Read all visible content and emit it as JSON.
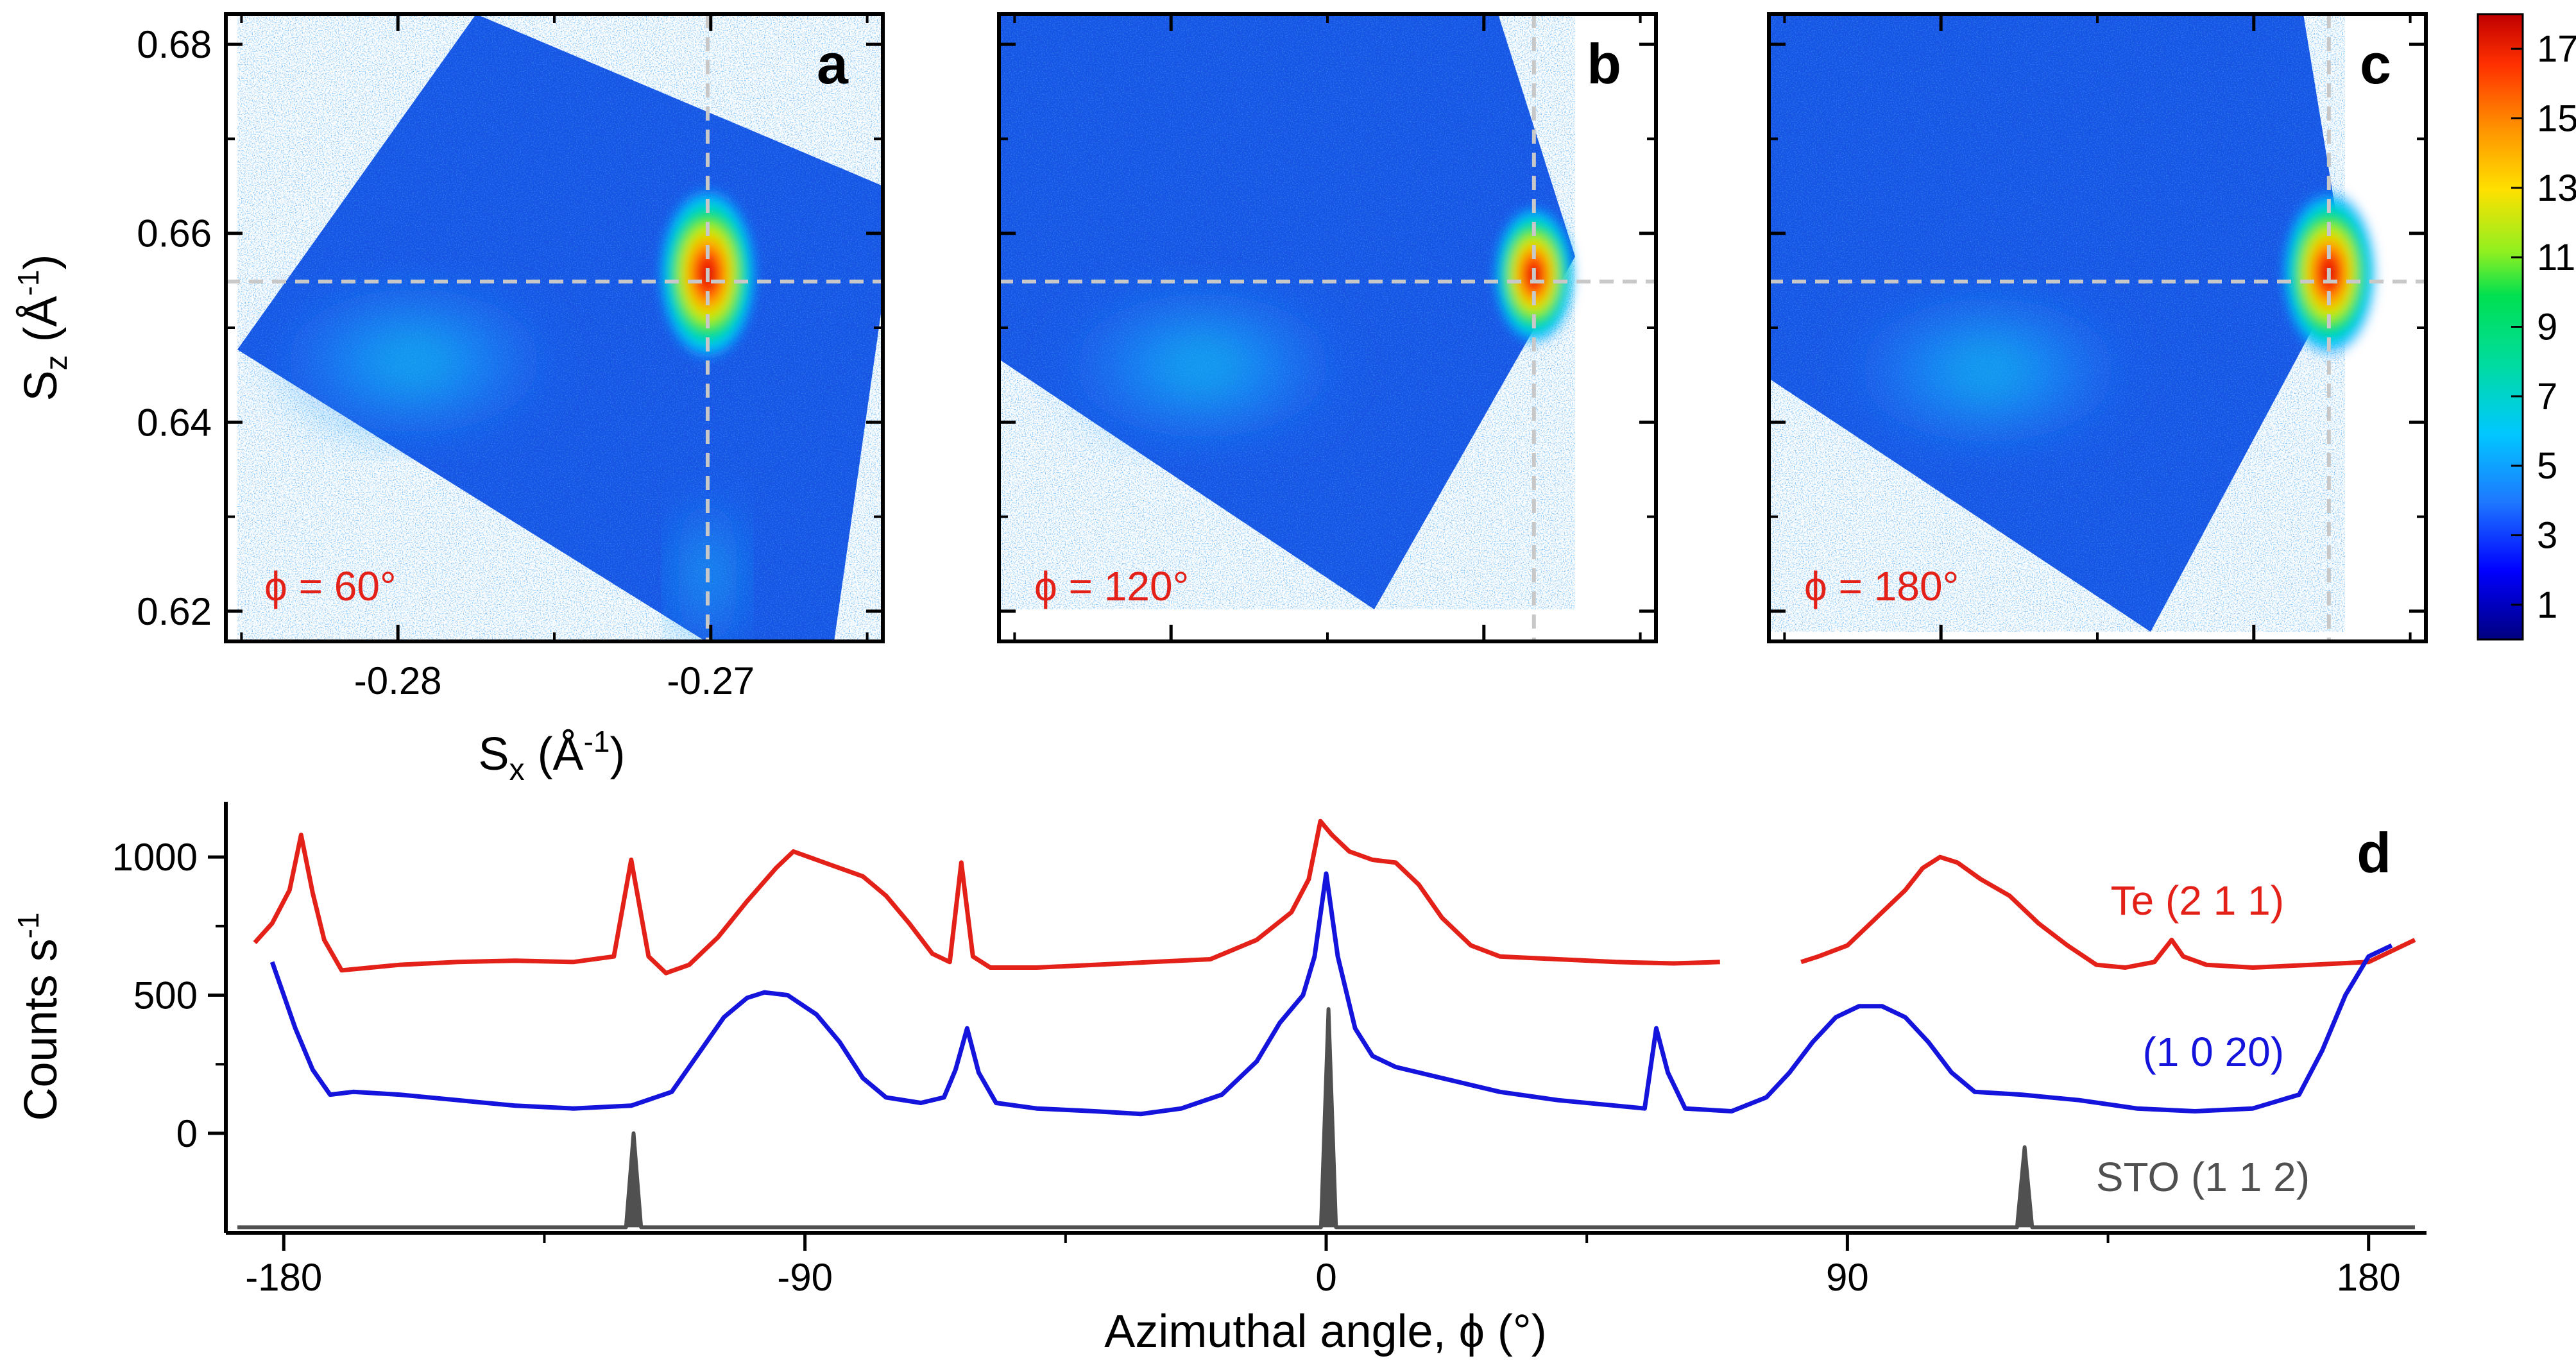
{
  "colors": {
    "red": "#e32119",
    "blue": "#1414dc",
    "gray": "#505050",
    "guide": "#c8c8c8"
  },
  "chart_data": [
    {
      "type": "heatmap",
      "panel": "a",
      "annotation": "ϕ = 60°",
      "xlabel": "S",
      "xlabel_sub": "x",
      "xlabel_unit": " (Å",
      "xlabel_sup": "-1",
      "xlabel_close": ")",
      "ylabel": "S",
      "ylabel_sub": "z",
      "ylabel_unit": " (Å",
      "ylabel_sup": "-1",
      "ylabel_close": ")",
      "xlim": [
        -0.2855,
        -0.2645
      ],
      "ylim": [
        0.6168,
        0.6832
      ],
      "xticks": [
        -0.28,
        -0.27
      ],
      "xtick_labels": [
        "-0.28",
        "-0.27"
      ],
      "yticks": [
        0.62,
        0.64,
        0.66,
        0.68
      ],
      "ytick_labels": [
        "0.62",
        "0.64",
        "0.66",
        "0.68"
      ],
      "guide_x": -0.2701,
      "guide_y": 0.6549,
      "peak": {
        "x": -0.2701,
        "y": 0.6557,
        "max": 17
      },
      "diffuse": {
        "x": -0.2795,
        "y": 0.6465,
        "level": 6
      }
    },
    {
      "type": "heatmap",
      "panel": "b",
      "annotation": "ϕ = 120°",
      "xlim": [
        -0.2855,
        -0.2645
      ],
      "ylim": [
        0.6168,
        0.6832
      ],
      "guide_x": -0.2684,
      "guide_y": 0.6549,
      "peak": {
        "x": -0.2684,
        "y": 0.6556,
        "max": 13
      },
      "diffuse": {
        "x": -0.279,
        "y": 0.646,
        "level": 6
      }
    },
    {
      "type": "heatmap",
      "panel": "c",
      "annotation": "ϕ = 180°",
      "xlim": [
        -0.2855,
        -0.2645
      ],
      "ylim": [
        0.6168,
        0.6832
      ],
      "guide_x": -0.2676,
      "guide_y": 0.6549,
      "peak": {
        "x": -0.2676,
        "y": 0.6558,
        "max": 16
      },
      "diffuse": {
        "x": -0.2785,
        "y": 0.6455,
        "level": 6
      }
    },
    {
      "type": "colorbar",
      "range": [
        0,
        18
      ],
      "tick_values": [
        1,
        3,
        5,
        7,
        9,
        11,
        13,
        15,
        17
      ],
      "tick_labels": [
        "1",
        "3",
        "5",
        "7",
        "9",
        "11",
        "13",
        "15",
        "17"
      ]
    },
    {
      "type": "line",
      "panel": "d",
      "xlabel": "Azimuthal angle, ϕ (°)",
      "ylabel": "Counts s",
      "ylabel_sup": "-1",
      "xlim": [
        -190,
        190
      ],
      "ylim": [
        -360,
        1200
      ],
      "xticks": [
        -180,
        -90,
        0,
        90,
        180
      ],
      "xtick_labels": [
        "-180",
        "-90",
        "0",
        "90",
        "180"
      ],
      "yticks": [
        0,
        500,
        1000
      ],
      "ytick_labels": [
        "0",
        "500",
        "1000"
      ],
      "series": [
        {
          "name": "Te (2 1 1)",
          "color": "#e32119",
          "points": [
            [
              -185,
              690
            ],
            [
              -182,
              760
            ],
            [
              -179,
              880
            ],
            [
              -177,
              1080
            ],
            [
              -175,
              870
            ],
            [
              -173,
              700
            ],
            [
              -170,
              590
            ],
            [
              -165,
              600
            ],
            [
              -160,
              610
            ],
            [
              -150,
              620
            ],
            [
              -140,
              625
            ],
            [
              -130,
              620
            ],
            [
              -123,
              640
            ],
            [
              -120,
              990
            ],
            [
              -117,
              640
            ],
            [
              -114,
              580
            ],
            [
              -110,
              610
            ],
            [
              -105,
              710
            ],
            [
              -100,
              840
            ],
            [
              -95,
              960
            ],
            [
              -92,
              1020
            ],
            [
              -88,
              990
            ],
            [
              -84,
              960
            ],
            [
              -80,
              930
            ],
            [
              -76,
              860
            ],
            [
              -72,
              760
            ],
            [
              -68,
              650
            ],
            [
              -65,
              620
            ],
            [
              -63,
              980
            ],
            [
              -61,
              640
            ],
            [
              -58,
              600
            ],
            [
              -50,
              600
            ],
            [
              -40,
              610
            ],
            [
              -30,
              620
            ],
            [
              -20,
              630
            ],
            [
              -12,
              700
            ],
            [
              -6,
              800
            ],
            [
              -3,
              920
            ],
            [
              -1,
              1130
            ],
            [
              1,
              1080
            ],
            [
              4,
              1020
            ],
            [
              8,
              990
            ],
            [
              12,
              980
            ],
            [
              16,
              900
            ],
            [
              20,
              780
            ],
            [
              25,
              680
            ],
            [
              30,
              640
            ],
            [
              40,
              630
            ],
            [
              50,
              620
            ],
            [
              60,
              615
            ],
            [
              68,
              620
            ],
            [
              68,
              null
            ],
            [
              82,
              620
            ],
            [
              85,
              640
            ],
            [
              90,
              680
            ],
            [
              95,
              780
            ],
            [
              100,
              880
            ],
            [
              103,
              960
            ],
            [
              106,
              1000
            ],
            [
              109,
              980
            ],
            [
              113,
              920
            ],
            [
              118,
              860
            ],
            [
              123,
              760
            ],
            [
              128,
              680
            ],
            [
              133,
              610
            ],
            [
              138,
              600
            ],
            [
              143,
              620
            ],
            [
              146,
              700
            ],
            [
              148,
              640
            ],
            [
              152,
              610
            ],
            [
              160,
              600
            ],
            [
              170,
              610
            ],
            [
              180,
              620
            ],
            [
              188,
              700
            ]
          ]
        },
        {
          "name": "(1 0 20)",
          "color": "#1414dc",
          "points": [
            [
              -182,
              620
            ],
            [
              -180,
              500
            ],
            [
              -178,
              380
            ],
            [
              -175,
              230
            ],
            [
              -172,
              140
            ],
            [
              -168,
              150
            ],
            [
              -160,
              140
            ],
            [
              -150,
              120
            ],
            [
              -140,
              100
            ],
            [
              -130,
              90
            ],
            [
              -120,
              100
            ],
            [
              -113,
              150
            ],
            [
              -108,
              300
            ],
            [
              -104,
              420
            ],
            [
              -100,
              490
            ],
            [
              -97,
              510
            ],
            [
              -93,
              500
            ],
            [
              -88,
              430
            ],
            [
              -84,
              330
            ],
            [
              -80,
              200
            ],
            [
              -76,
              130
            ],
            [
              -70,
              110
            ],
            [
              -66,
              130
            ],
            [
              -64,
              230
            ],
            [
              -62,
              380
            ],
            [
              -60,
              220
            ],
            [
              -57,
              110
            ],
            [
              -50,
              90
            ],
            [
              -40,
              80
            ],
            [
              -32,
              70
            ],
            [
              -25,
              90
            ],
            [
              -18,
              140
            ],
            [
              -12,
              260
            ],
            [
              -8,
              400
            ],
            [
              -4,
              500
            ],
            [
              -2,
              640
            ],
            [
              0,
              940
            ],
            [
              2,
              640
            ],
            [
              5,
              380
            ],
            [
              8,
              280
            ],
            [
              12,
              240
            ],
            [
              20,
              200
            ],
            [
              30,
              150
            ],
            [
              40,
              120
            ],
            [
              50,
              100
            ],
            [
              55,
              90
            ],
            [
              57,
              380
            ],
            [
              59,
              220
            ],
            [
              62,
              90
            ],
            [
              70,
              80
            ],
            [
              76,
              130
            ],
            [
              80,
              220
            ],
            [
              84,
              330
            ],
            [
              88,
              420
            ],
            [
              92,
              460
            ],
            [
              96,
              460
            ],
            [
              100,
              420
            ],
            [
              104,
              330
            ],
            [
              108,
              220
            ],
            [
              112,
              150
            ],
            [
              120,
              140
            ],
            [
              130,
              120
            ],
            [
              140,
              90
            ],
            [
              150,
              80
            ],
            [
              160,
              90
            ],
            [
              168,
              140
            ],
            [
              172,
              300
            ],
            [
              176,
              500
            ],
            [
              180,
              640
            ],
            [
              184,
              680
            ]
          ]
        },
        {
          "name": "STO (1 1 2)",
          "color": "#505050",
          "baseline": -340,
          "x_start": -188,
          "x_end": 188,
          "peaks": [
            [
              -119.6,
              0
            ],
            [
              0.4,
              450
            ],
            [
              120.6,
              -50
            ]
          ],
          "peak_width": 1.3
        }
      ]
    }
  ]
}
